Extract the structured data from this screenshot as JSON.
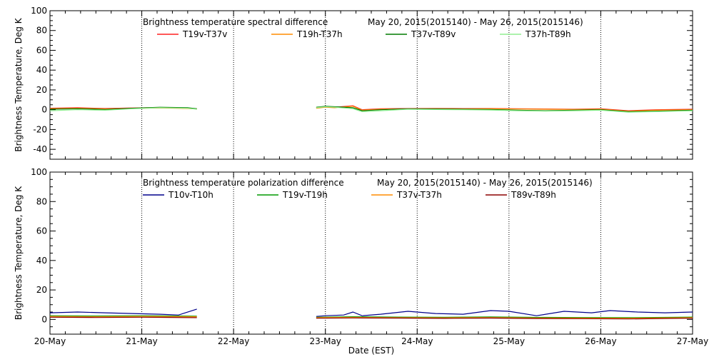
{
  "chart_data": [
    {
      "type": "line",
      "title": "Brightness temperature spectral difference",
      "date_range": "May 20, 2015(2015140) - May 26, 2015(2015146)",
      "ylabel": "Brightness Temperature, Deg K",
      "ylim": [
        -50,
        100
      ],
      "yticks": [
        -40,
        -20,
        0,
        20,
        40,
        60,
        80,
        100
      ],
      "xlim": [
        0,
        7
      ],
      "x_units": "days since 20-May",
      "legend_placement": "top, in two rows of four",
      "grid": "vertical dotted lines at day boundaries",
      "series": [
        {
          "name": "T19v-T37v",
          "color": "#ff2020",
          "x": [
            0,
            0.3,
            0.6,
            0.9,
            1.2,
            1.5,
            1.6,
            2.9,
            3.0,
            3.1,
            3.3,
            3.4,
            3.6,
            3.9,
            4.2,
            4.5,
            4.8,
            5.1,
            5.4,
            5.7,
            6.0,
            6.3,
            6.6,
            7.0
          ],
          "y": [
            1.5,
            2,
            1.2,
            1.8,
            2.2,
            1.5,
            1,
            2,
            3,
            2.5,
            4,
            0,
            1,
            1.2,
            1.3,
            1.1,
            1.2,
            1,
            0.8,
            0.5,
            1,
            -1,
            0,
            0.5
          ]
        },
        {
          "name": "T19h-T37h",
          "color": "#ff8c00",
          "x": [
            0,
            0.3,
            0.6,
            0.9,
            1.2,
            1.5,
            1.6,
            2.9,
            3.0,
            3.1,
            3.3,
            3.4,
            3.6,
            3.9,
            4.2,
            4.5,
            4.8,
            5.1,
            5.4,
            5.7,
            6.0,
            6.3,
            6.6,
            7.0
          ],
          "y": [
            1,
            1.5,
            0.8,
            1.2,
            1.8,
            1.2,
            0.8,
            1.5,
            2.5,
            2,
            3.5,
            -0.5,
            0.5,
            0.8,
            1,
            0.8,
            0.9,
            0.7,
            0.5,
            0.3,
            0.5,
            -1.5,
            -0.5,
            0
          ]
        },
        {
          "name": "T37v-T89v",
          "color": "#007a00",
          "x": [
            0,
            0.3,
            0.6,
            0.9,
            1.2,
            1.5,
            1.6,
            2.9,
            3.0,
            3.1,
            3.3,
            3.4,
            3.6,
            3.9,
            4.2,
            4.5,
            4.8,
            5.1,
            5.4,
            5.7,
            6.0,
            6.3,
            6.6,
            7.0
          ],
          "y": [
            0.5,
            1,
            0.3,
            1.5,
            2.5,
            2,
            1,
            2.5,
            3.5,
            3,
            2,
            -1,
            0,
            1,
            0.8,
            0.5,
            0.3,
            -0.5,
            -1,
            -0.5,
            0,
            -2,
            -1.5,
            -0.5
          ]
        },
        {
          "name": "T37h-T89h",
          "color": "#90ee90",
          "x": [
            0,
            0.3,
            0.6,
            0.9,
            1.2,
            1.5,
            1.6,
            2.9,
            3.0,
            3.1,
            3.3,
            3.4,
            3.6,
            3.9,
            4.2,
            4.5,
            4.8,
            5.1,
            5.4,
            5.7,
            6.0,
            6.3,
            6.6,
            7.0
          ],
          "y": [
            -1,
            0,
            -0.5,
            1,
            2,
            1.5,
            0.5,
            2,
            3,
            2.5,
            1,
            -2,
            -1,
            0.5,
            0.2,
            0,
            -0.3,
            -1,
            -1.5,
            -1,
            -0.5,
            -2.5,
            -2,
            -1
          ]
        }
      ]
    },
    {
      "type": "line",
      "title": "Brightness temperature polarization difference",
      "date_range": "May 20, 2015(2015140) - May 26, 2015(2015146)",
      "ylabel": "Brightness Temperature, Deg K",
      "xlabel": "Date (EST)",
      "ylim": [
        -10,
        100
      ],
      "yticks": [
        0,
        20,
        40,
        60,
        80,
        100
      ],
      "xlim": [
        0,
        7
      ],
      "x_units": "days since 20-May",
      "xtick_labels": [
        "20-May",
        "21-May",
        "22-May",
        "23-May",
        "24-May",
        "25-May",
        "26-May",
        "27-May"
      ],
      "legend_placement": "top, in one row of four",
      "grid": "vertical dotted lines at day boundaries",
      "series": [
        {
          "name": "T10v-T10h",
          "color": "#00008b",
          "x": [
            0,
            0.3,
            0.6,
            0.9,
            1.2,
            1.4,
            1.6,
            2.9,
            3.0,
            3.2,
            3.3,
            3.4,
            3.6,
            3.9,
            4.2,
            4.5,
            4.8,
            5.0,
            5.3,
            5.6,
            5.9,
            6.1,
            6.4,
            6.7,
            7.0
          ],
          "y": [
            4.5,
            5,
            4.5,
            4,
            3.5,
            3,
            7,
            2,
            2.5,
            3,
            5,
            2.5,
            3.5,
            5.5,
            4,
            3.5,
            6,
            5.5,
            2.5,
            5.5,
            4.5,
            6,
            5,
            4.5,
            5
          ]
        },
        {
          "name": "T19v-T19h",
          "color": "#009900",
          "x": [
            0,
            0.5,
            1.0,
            1.6,
            2.9,
            3.3,
            3.8,
            4.3,
            4.8,
            5.3,
            5.8,
            6.3,
            6.8,
            7.0
          ],
          "y": [
            2.5,
            2.3,
            2.5,
            2.2,
            1.5,
            1.8,
            1.6,
            1.5,
            1.7,
            1.4,
            1.3,
            1.2,
            1.5,
            1.6
          ]
        },
        {
          "name": "T37v-T37h",
          "color": "#ff8c00",
          "x": [
            0,
            0.5,
            1.0,
            1.6,
            2.9,
            3.3,
            3.8,
            4.3,
            4.8,
            5.3,
            5.8,
            6.3,
            6.8,
            7.0
          ],
          "y": [
            2,
            1.8,
            2,
            1.8,
            1.2,
            1.4,
            1.2,
            1.1,
            1.3,
            1,
            0.9,
            0.8,
            1.1,
            1.2
          ]
        },
        {
          "name": "T89v-T89h",
          "color": "#8b0000",
          "x": [
            0,
            0.5,
            1.0,
            1.6,
            2.9,
            3.3,
            3.8,
            4.3,
            4.8,
            5.3,
            5.8,
            6.3,
            6.8,
            7.0
          ],
          "y": [
            1.5,
            1.3,
            1.5,
            1.2,
            0.8,
            1,
            0.9,
            0.7,
            0.9,
            0.6,
            0.5,
            0.3,
            0.7,
            0.8
          ]
        }
      ]
    }
  ]
}
